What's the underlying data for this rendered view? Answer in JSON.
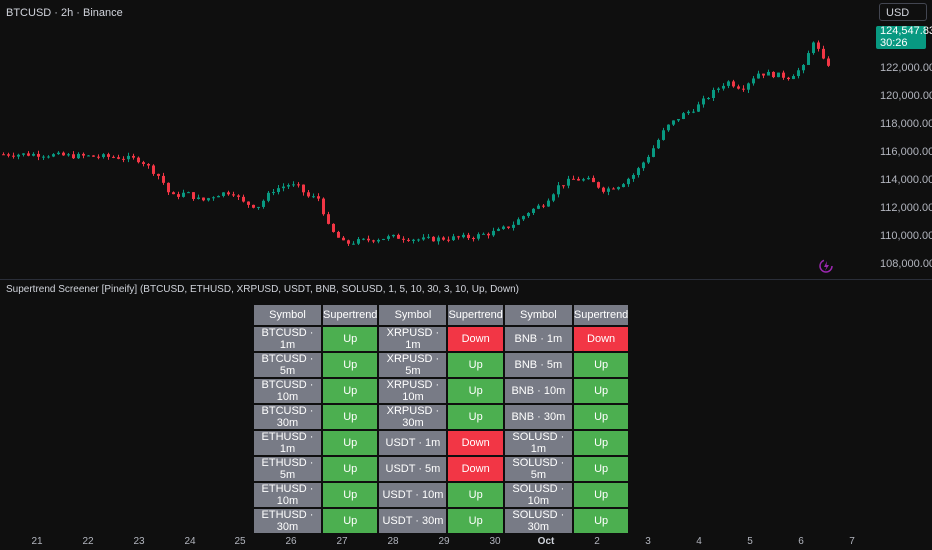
{
  "header": {
    "title": "BTCUSD · 2h · Binance",
    "currency": "USD"
  },
  "price_axis": {
    "labels": [
      "122,000.00",
      "120,000.00",
      "118,000.00",
      "116,000.00",
      "114,000.00",
      "112,000.00",
      "110,000.00",
      "108,000.00"
    ],
    "last_price": "124,547.83",
    "countdown": "30:26"
  },
  "indicator_title": "Supertrend Screener [Pineify] (BTCUSD, ETHUSD, XRPUSD, USDT, BNB, SOLUSD, 1, 5, 10, 30, 3, 10, Up, Down)",
  "table": {
    "headers": [
      "Symbol",
      "Supertrend",
      "Symbol",
      "Supertrend",
      "Symbol",
      "Supertrend"
    ],
    "rows": [
      [
        "BTCUSD · 1m",
        "Up",
        "XRPUSD · 1m",
        "Down",
        "BNB · 1m",
        "Down"
      ],
      [
        "BTCUSD · 5m",
        "Up",
        "XRPUSD · 5m",
        "Up",
        "BNB · 5m",
        "Up"
      ],
      [
        "BTCUSD · 10m",
        "Up",
        "XRPUSD · 10m",
        "Up",
        "BNB · 10m",
        "Up"
      ],
      [
        "BTCUSD · 30m",
        "Up",
        "XRPUSD · 30m",
        "Up",
        "BNB · 30m",
        "Up"
      ],
      [
        "ETHUSD · 1m",
        "Up",
        "USDT · 1m",
        "Down",
        "SOLUSD · 1m",
        "Up"
      ],
      [
        "ETHUSD · 5m",
        "Up",
        "USDT · 5m",
        "Down",
        "SOLUSD · 5m",
        "Up"
      ],
      [
        "ETHUSD · 10m",
        "Up",
        "USDT · 10m",
        "Up",
        "SOLUSD · 10m",
        "Up"
      ],
      [
        "ETHUSD · 30m",
        "Up",
        "USDT · 30m",
        "Up",
        "SOLUSD · 30m",
        "Up"
      ]
    ]
  },
  "time_axis": [
    "21",
    "22",
    "23",
    "24",
    "25",
    "26",
    "27",
    "28",
    "29",
    "30",
    "Oct",
    "2",
    "3",
    "4",
    "5",
    "6",
    "7"
  ],
  "colors": {
    "up": "#4caf50",
    "down": "#f23645",
    "candle_up": "#089981",
    "candle_down": "#f23645",
    "neutral": "#787b86"
  },
  "chart_data": {
    "type": "candlestick",
    "series": [
      {
        "name": "BTCUSD",
        "points": [
          [
            0,
            115900
          ],
          [
            0.5,
            115800
          ],
          [
            1,
            115750
          ],
          [
            1.5,
            115700
          ],
          [
            2,
            115500
          ],
          [
            2.4,
            114200
          ],
          [
            2.6,
            112800
          ],
          [
            2.9,
            113100
          ],
          [
            3.2,
            112500
          ],
          [
            3.5,
            113000
          ],
          [
            3.8,
            113200
          ],
          [
            4.0,
            112400
          ],
          [
            4.3,
            112100
          ],
          [
            4.6,
            113300
          ],
          [
            4.9,
            113700
          ],
          [
            5.1,
            113500
          ],
          [
            5.3,
            112800
          ],
          [
            5.5,
            112700
          ],
          [
            5.7,
            110500
          ],
          [
            6,
            109400
          ],
          [
            6.3,
            109600
          ],
          [
            6.7,
            109800
          ],
          [
            7.0,
            109900
          ],
          [
            7.5,
            109700
          ],
          [
            8.0,
            109800
          ],
          [
            8.5,
            109900
          ],
          [
            9.0,
            110300
          ],
          [
            9.3,
            110800
          ],
          [
            9.6,
            111700
          ],
          [
            9.9,
            112300
          ],
          [
            10.2,
            113600
          ],
          [
            10.5,
            114100
          ],
          [
            10.8,
            114000
          ],
          [
            11.1,
            113300
          ],
          [
            11.4,
            113700
          ],
          [
            11.7,
            114500
          ],
          [
            12.0,
            116000
          ],
          [
            12.3,
            117800
          ],
          [
            12.6,
            118700
          ],
          [
            12.9,
            119300
          ],
          [
            13.2,
            120300
          ],
          [
            13.5,
            121200
          ],
          [
            13.8,
            120700
          ],
          [
            14.1,
            121800
          ],
          [
            14.4,
            121700
          ],
          [
            14.7,
            121500
          ],
          [
            15.0,
            122200
          ],
          [
            15.2,
            124200
          ],
          [
            15.4,
            122600
          ],
          [
            15.7,
            122100
          ],
          [
            16.0,
            122400
          ],
          [
            16.3,
            123400
          ],
          [
            16.5,
            124200
          ]
        ]
      }
    ],
    "ylim": [
      107500,
      125500
    ]
  }
}
